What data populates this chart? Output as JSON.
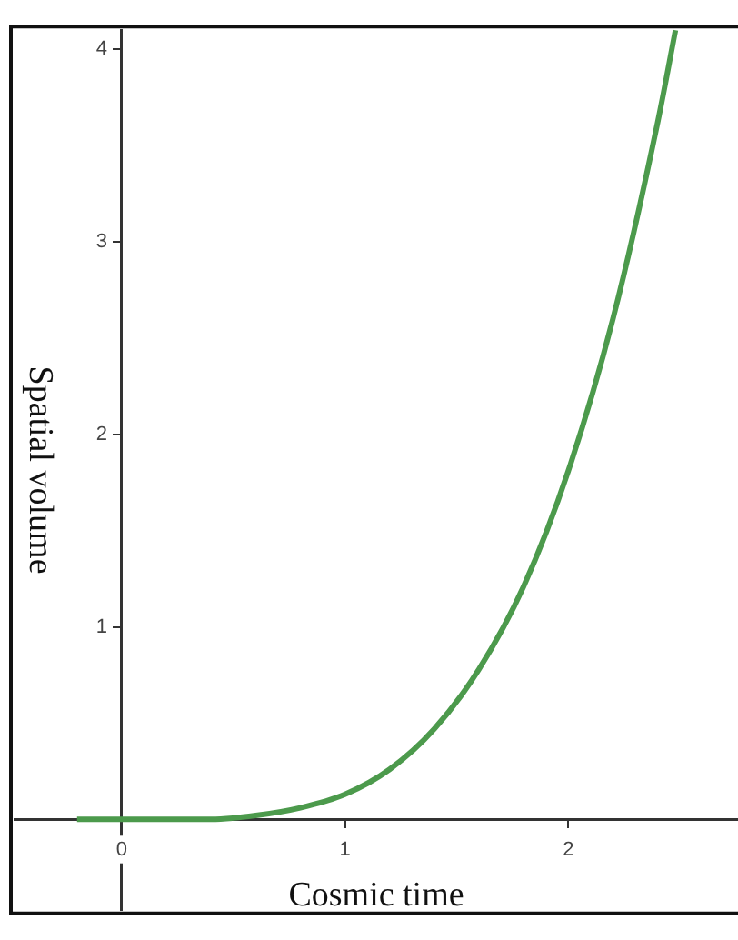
{
  "chart_data": {
    "type": "line",
    "xlabel": "Cosmic time",
    "ylabel": "Spatial volume",
    "x": [
      -0.2,
      0,
      0.2,
      0.4,
      0.6,
      0.8,
      1.0,
      1.2,
      1.4,
      1.6,
      1.8,
      2.0,
      2.2,
      2.4,
      2.48
    ],
    "series": [
      {
        "color": "#4c9a4c",
        "values": [
          0,
          0,
          0,
          0,
          0.02,
          0.06,
          0.13,
          0.26,
          0.47,
          0.78,
          1.21,
          1.81,
          2.6,
          3.62,
          4.1
        ]
      }
    ],
    "xlim": [
      -0.48,
      2.76
    ],
    "ylim": [
      -0.47,
      4.1
    ],
    "xticks": [
      0,
      1,
      2
    ],
    "yticks": [
      1,
      2,
      3,
      4
    ]
  }
}
